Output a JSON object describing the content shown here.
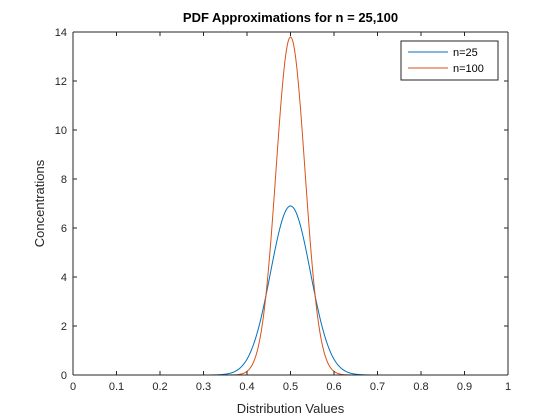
{
  "chart_data": {
    "type": "line",
    "title": "PDF Approximations for n = 25,100",
    "xlabel": "Distribution Values",
    "ylabel": "Concentrations",
    "xlim": [
      0,
      1
    ],
    "ylim": [
      0,
      14
    ],
    "xticks": [
      "0",
      "0.1",
      "0.2",
      "0.3",
      "0.4",
      "0.5",
      "0.6",
      "0.7",
      "0.8",
      "0.9",
      "1"
    ],
    "yticks": [
      "0",
      "2",
      "4",
      "6",
      "8",
      "10",
      "12",
      "14"
    ],
    "grid": false,
    "legend_position": "top-right",
    "series": [
      {
        "name": "n=25",
        "color": "#0072BD",
        "x": [
          0,
          0.25,
          0.3,
          0.35,
          0.4,
          0.45,
          0.475,
          0.5,
          0.525,
          0.55,
          0.6,
          0.65,
          0.7,
          0.75,
          1
        ],
        "y": [
          0,
          0.01,
          0.08,
          0.5,
          1.9,
          4.5,
          5.95,
          6.9,
          5.95,
          4.5,
          1.9,
          0.5,
          0.08,
          0.01,
          0
        ]
      },
      {
        "name": "n=100",
        "color": "#D95319",
        "x": [
          0,
          0.375,
          0.4,
          0.425,
          0.45,
          0.475,
          0.49,
          0.5,
          0.51,
          0.525,
          0.55,
          0.575,
          0.6,
          0.625,
          1
        ],
        "y": [
          0,
          0.01,
          0.15,
          1.0,
          4.5,
          10.4,
          13.1,
          13.8,
          13.1,
          10.4,
          4.5,
          1.0,
          0.15,
          0.01,
          0
        ]
      }
    ]
  }
}
